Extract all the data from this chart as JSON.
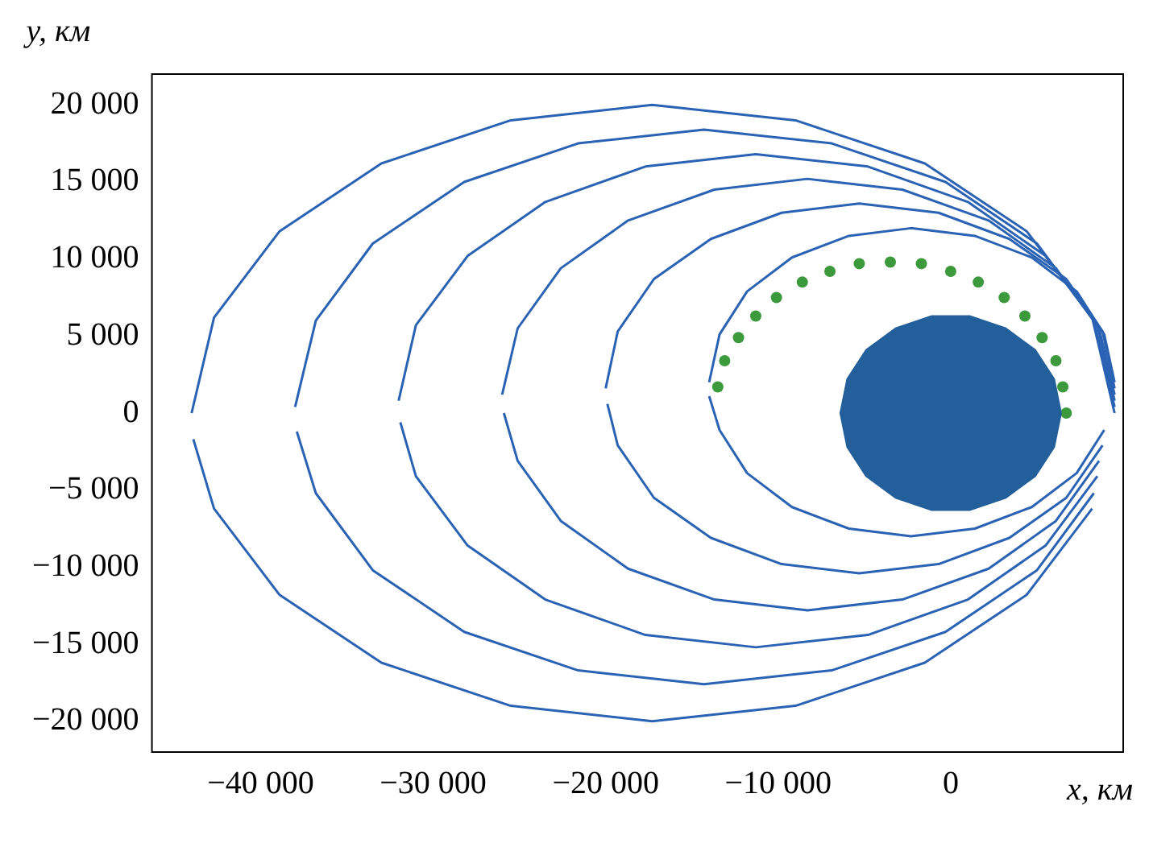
{
  "chart_data": {
    "type": "line",
    "xlabel": "x, км",
    "ylabel": "y, км",
    "xlim": [
      -46300,
      10000
    ],
    "ylim": [
      -22000,
      22000
    ],
    "xticks": [
      {
        "value": -40000,
        "label": "−40 000"
      },
      {
        "value": -30000,
        "label": "−30 000"
      },
      {
        "value": -20000,
        "label": "−20 000"
      },
      {
        "value": -10000,
        "label": "−10 000"
      },
      0
    ],
    "yticks": [
      {
        "value": -20000,
        "label": "−20 000"
      },
      {
        "value": -15000,
        "label": "−15 000"
      },
      {
        "value": -10000,
        "label": "−10 000"
      },
      {
        "value": -5000,
        "label": "−5 000"
      },
      0,
      {
        "value": 5000,
        "label": "5 000"
      },
      {
        "value": 10000,
        "label": "10 000"
      },
      {
        "value": 15000,
        "label": "15 000"
      },
      {
        "value": 20000,
        "label": "20 000"
      }
    ],
    "grid": false,
    "legend": false,
    "series": [
      {
        "color": "#2a62b4",
        "x": [
          -14000,
          -13400,
          -11800,
          -9200,
          -5900,
          -2300,
          1400,
          4700,
          7300,
          8900,
          9500
        ],
        "values": [
          2000,
          5100,
          7900,
          10100,
          11500,
          12000,
          11500,
          10100,
          7900,
          5100,
          2000
        ]
      },
      {
        "color": "#2a62b4",
        "x": [
          -14000,
          -13400,
          -11800,
          -9200,
          -5900,
          -2300,
          1400,
          4700,
          7300,
          8900
        ],
        "values": [
          1100,
          -1100,
          -3900,
          -6100,
          -7500,
          -8000,
          -7500,
          -6100,
          -3900,
          -1100
        ]
      },
      {
        "color": "#2a62b4",
        "x": [
          -20000,
          -19300,
          -17200,
          -13900,
          -9800,
          -5300,
          -700,
          3400,
          6700,
          8800,
          9500
        ],
        "values": [
          1600,
          5300,
          8700,
          11300,
          13000,
          13600,
          13000,
          11300,
          8700,
          5300,
          1600
        ]
      },
      {
        "color": "#2a62b4",
        "x": [
          -19900,
          -19300,
          -17200,
          -13900,
          -9800,
          -5300,
          -700,
          3400,
          6700,
          8800
        ],
        "values": [
          600,
          -2100,
          -5500,
          -8100,
          -9800,
          -10400,
          -9800,
          -8100,
          -5500,
          -2100
        ]
      },
      {
        "color": "#2a62b4",
        "x": [
          -26000,
          -25100,
          -22600,
          -18700,
          -13700,
          -8300,
          -2800,
          2200,
          6100,
          8600,
          9500
        ],
        "values": [
          1200,
          5500,
          9400,
          12500,
          14500,
          15200,
          14500,
          12500,
          9400,
          5500,
          1200
        ]
      },
      {
        "color": "#2a62b4",
        "x": [
          -25900,
          -25100,
          -22600,
          -18700,
          -13700,
          -8300,
          -2800,
          2200,
          6100,
          8600
        ],
        "values": [
          0,
          -3100,
          -7000,
          -10100,
          -12100,
          -12800,
          -12100,
          -10100,
          -7000,
          -3100
        ]
      },
      {
        "color": "#2a62b4",
        "x": [
          -32000,
          -31000,
          -28000,
          -23500,
          -17700,
          -11300,
          -4800,
          1000,
          5500,
          8500,
          9500
        ],
        "values": [
          800,
          5700,
          10200,
          13700,
          16000,
          16800,
          16000,
          13700,
          10200,
          5700,
          800
        ]
      },
      {
        "color": "#2a62b4",
        "x": [
          -31900,
          -31000,
          -28000,
          -23500,
          -17700,
          -11300,
          -4800,
          1000,
          5500,
          8500
        ],
        "values": [
          -600,
          -4100,
          -8600,
          -12100,
          -14400,
          -15200,
          -14400,
          -12100,
          -8600,
          -4100
        ]
      },
      {
        "color": "#2a62b4",
        "x": [
          -38000,
          -36800,
          -33500,
          -28200,
          -21600,
          -14300,
          -6900,
          -300,
          5000,
          8300,
          9500
        ],
        "values": [
          400,
          6000,
          11000,
          15000,
          17500,
          18400,
          17500,
          15000,
          11000,
          6000,
          400
        ]
      },
      {
        "color": "#2a62b4",
        "x": [
          -37900,
          -36800,
          -33500,
          -28200,
          -21600,
          -14300,
          -6900,
          -300,
          5000,
          8300
        ],
        "values": [
          -1200,
          -5200,
          -10200,
          -14200,
          -16700,
          -17600,
          -16700,
          -14200,
          -10200,
          -5200
        ]
      },
      {
        "color": "#2a62b4",
        "x": [
          -44000,
          -42700,
          -38900,
          -33000,
          -25500,
          -17300,
          -9000,
          -1500,
          4400,
          8200,
          9500
        ],
        "values": [
          0,
          6200,
          11800,
          16200,
          19000,
          20000,
          19000,
          16200,
          11800,
          6200,
          0
        ]
      },
      {
        "color": "#2a62b4",
        "x": [
          -43900,
          -42700,
          -38900,
          -33000,
          -25500,
          -17300,
          -9000,
          -1500,
          4400,
          8200
        ],
        "values": [
          -1700,
          -6200,
          -11800,
          -16200,
          -19000,
          -20000,
          -19000,
          -16200,
          -11800,
          -6200
        ]
      },
      {
        "type": "area",
        "color": "#235f9a",
        "x": [
          6400,
          6000,
          4900,
          3200,
          1100,
          -1100,
          -3200,
          -4900,
          -6000,
          -6400,
          -6000,
          -4900,
          -3200,
          -1100,
          1100,
          3200,
          4900,
          6000,
          6400
        ],
        "values": [
          0,
          2200,
          4100,
          5500,
          6300,
          6300,
          5500,
          4100,
          2200,
          0,
          -2200,
          -4100,
          -5500,
          -6300,
          -6300,
          -5500,
          -4100,
          -2200,
          0
        ]
      },
      {
        "type": "scatter",
        "color": "#3c9a3c",
        "marker": "circle",
        "x": [
          6700,
          6500,
          6100,
          5300,
          4300,
          3100,
          1600,
          0,
          -1700,
          -3500,
          -5300,
          -7000,
          -8600,
          -10100,
          -11300,
          -12300,
          -13100,
          -13500
        ],
        "values": [
          0,
          1700,
          3400,
          4900,
          6300,
          7500,
          8500,
          9200,
          9700,
          9800,
          9700,
          9200,
          8500,
          7500,
          6300,
          4900,
          3400,
          1700
        ]
      }
    ]
  }
}
